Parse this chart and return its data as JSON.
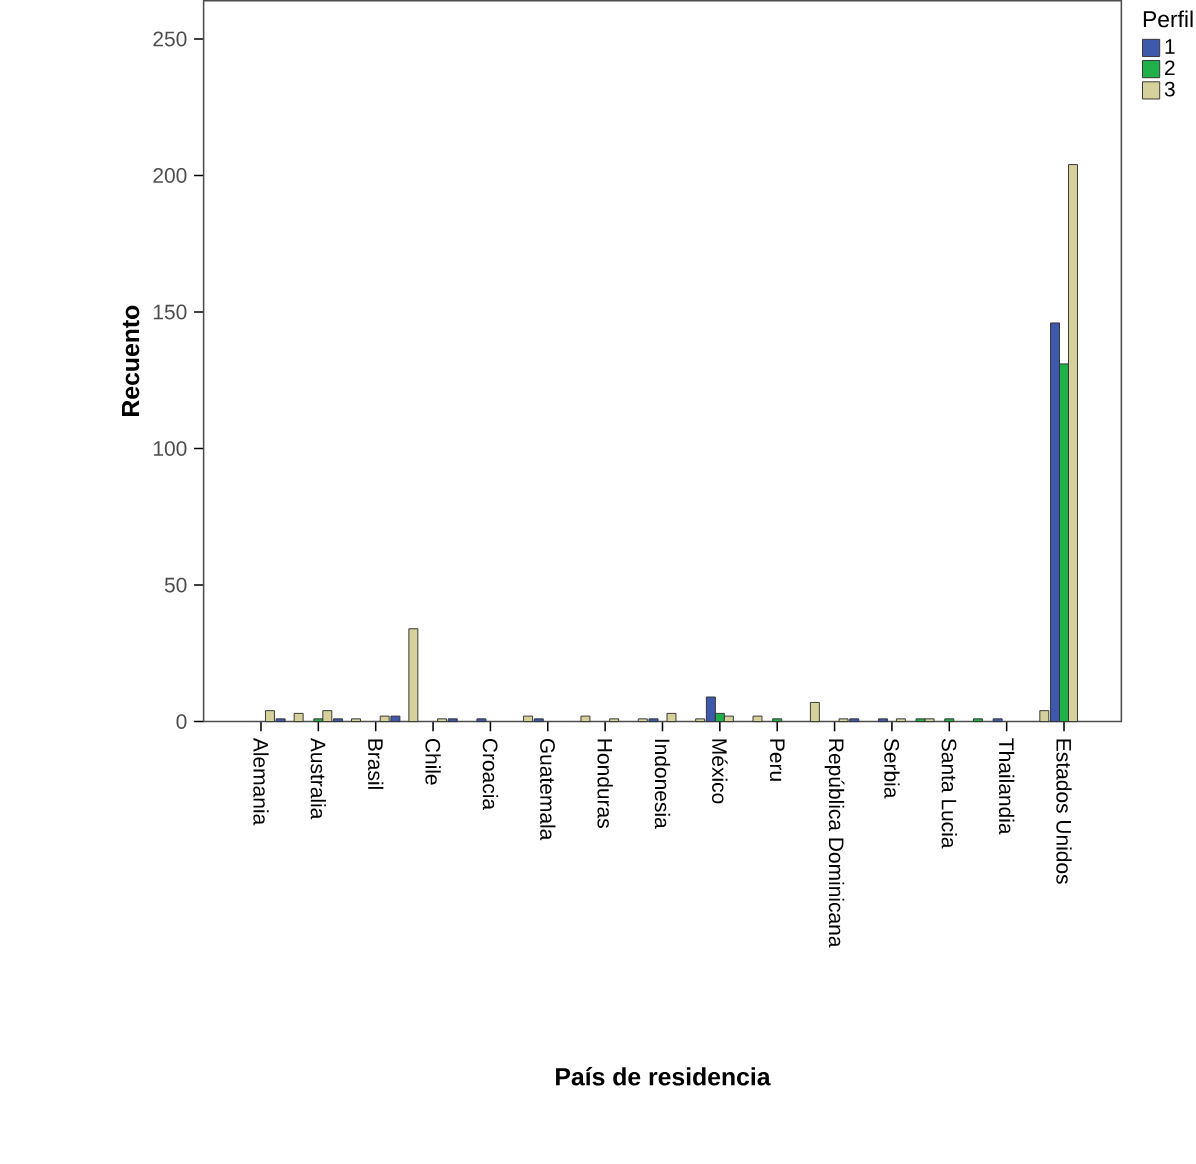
{
  "chart_data": {
    "type": "bar",
    "xlabel": "País de residencia",
    "ylabel": "Recuento",
    "legend_title": "Perfil",
    "legend": "top right",
    "categories": [
      "Alemania",
      null,
      "Australia",
      null,
      "Brasil",
      null,
      "Chile",
      null,
      "Croacia",
      null,
      "Guatemala",
      null,
      "Honduras",
      null,
      "Indonesia",
      null,
      "México",
      null,
      "Peru",
      null,
      "República Dominicana",
      null,
      "Serbia",
      null,
      "Santa Lucia",
      null,
      "Thailandia",
      null,
      "Estados Unidos"
    ],
    "series": [
      {
        "name": "1",
        "color": "#3e58ac",
        "values": [
          null,
          1,
          null,
          1,
          null,
          2,
          null,
          1,
          1,
          null,
          1,
          null,
          null,
          null,
          1,
          null,
          9,
          null,
          null,
          null,
          null,
          1,
          1,
          null,
          null,
          null,
          1,
          null,
          146
        ]
      },
      {
        "name": "2",
        "color": "#1fb04a",
        "values": [
          null,
          null,
          1,
          null,
          null,
          null,
          null,
          null,
          null,
          null,
          null,
          null,
          null,
          null,
          null,
          null,
          3,
          null,
          1,
          null,
          null,
          null,
          null,
          1,
          1,
          1,
          null,
          null,
          131
        ]
      },
      {
        "name": "3",
        "color": "#d6d19a",
        "values": [
          4,
          3,
          4,
          1,
          2,
          34,
          1,
          null,
          null,
          2,
          null,
          2,
          1,
          1,
          3,
          1,
          2,
          2,
          null,
          7,
          1,
          null,
          1,
          1,
          null,
          null,
          null,
          4,
          204
        ]
      }
    ],
    "ylim": [
      0,
      264
    ],
    "yticks": [
      0,
      50,
      100,
      150,
      200,
      250
    ]
  }
}
